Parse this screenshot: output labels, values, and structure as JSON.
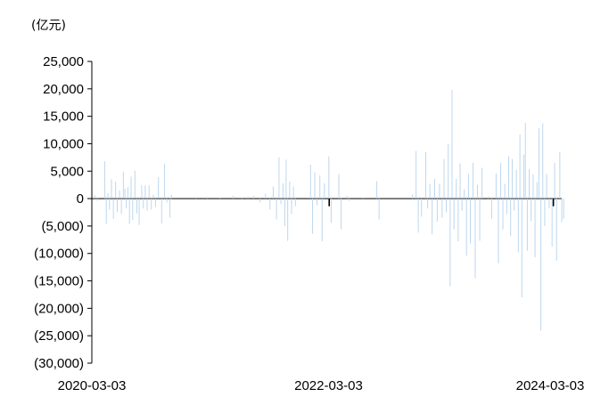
{
  "chart_data": {
    "type": "bar",
    "unit_label": "(亿元)",
    "ylim": [
      -30000,
      25000
    ],
    "yticks": [
      25000,
      20000,
      15000,
      10000,
      5000,
      0,
      -5000,
      -10000,
      -15000,
      -20000,
      -25000,
      -30000
    ],
    "ytick_labels": [
      "25,000",
      "20,000",
      "15,000",
      "10,000",
      "5,000",
      "0",
      "(5,000)",
      "(10,000)",
      "(15,000)",
      "(20,000)",
      "(25,000)",
      "(30,000)"
    ],
    "xlim": [
      "2020-03-03",
      "2024-03-03"
    ],
    "xtick_labels": [
      "2020-03-03",
      "2022-03-03",
      "2024-03-03"
    ],
    "grid": false,
    "series_colors": {
      "main": "#bdd7ee",
      "highlight": "#000000"
    },
    "series": [
      {
        "values": [
          [
            "2020-03-13",
            600
          ],
          [
            "2020-03-20",
            -400
          ],
          [
            "2020-04-12",
            6800
          ],
          [
            "2020-04-17",
            -4600
          ],
          [
            "2020-04-22",
            1000
          ],
          [
            "2020-04-27",
            -2000
          ],
          [
            "2020-05-03",
            3500
          ],
          [
            "2020-05-09",
            -3700
          ],
          [
            "2020-05-16",
            3100
          ],
          [
            "2020-05-21",
            -2500
          ],
          [
            "2020-05-28",
            1500
          ],
          [
            "2020-06-03",
            -2800
          ],
          [
            "2020-06-09",
            4900
          ],
          [
            "2020-06-14",
            1800
          ],
          [
            "2020-06-18",
            -1800
          ],
          [
            "2020-06-23",
            2100
          ],
          [
            "2020-06-28",
            -4600
          ],
          [
            "2020-07-03",
            4000
          ],
          [
            "2020-07-08",
            -3900
          ],
          [
            "2020-07-15",
            5100
          ],
          [
            "2020-07-21",
            -2700
          ],
          [
            "2020-07-28",
            -4800
          ],
          [
            "2020-08-05",
            2400
          ],
          [
            "2020-08-10",
            -1800
          ],
          [
            "2020-08-16",
            2400
          ],
          [
            "2020-08-22",
            -2200
          ],
          [
            "2020-08-28",
            2400
          ],
          [
            "2020-09-04",
            -2000
          ],
          [
            "2020-09-10",
            700
          ],
          [
            "2020-09-17",
            -1500
          ],
          [
            "2020-09-26",
            3900
          ],
          [
            "2020-10-06",
            -4500
          ],
          [
            "2020-10-15",
            6300
          ],
          [
            "2020-10-22",
            -700
          ],
          [
            "2020-11-01",
            -3500
          ],
          [
            "2020-11-06",
            700
          ],
          [
            "2021-01-20",
            300
          ],
          [
            "2021-02-25",
            300
          ],
          [
            "2021-04-05",
            200
          ],
          [
            "2021-05-16",
            500
          ],
          [
            "2021-06-12",
            -300
          ],
          [
            "2021-07-01",
            400
          ],
          [
            "2021-07-20",
            500
          ],
          [
            "2021-08-08",
            -700
          ],
          [
            "2021-08-25",
            900
          ],
          [
            "2021-09-08",
            -2000
          ],
          [
            "2021-09-18",
            2200
          ],
          [
            "2021-09-28",
            -3800
          ],
          [
            "2021-10-06",
            7500
          ],
          [
            "2021-10-12",
            -1000
          ],
          [
            "2021-10-18",
            2800
          ],
          [
            "2021-10-24",
            -5000
          ],
          [
            "2021-10-28",
            7100
          ],
          [
            "2021-11-02",
            -7700
          ],
          [
            "2021-11-08",
            3100
          ],
          [
            "2021-11-14",
            -2800
          ],
          [
            "2021-11-20",
            2200
          ],
          [
            "2021-11-26",
            -1400
          ],
          [
            "2022-01-12",
            6200
          ],
          [
            "2022-01-18",
            -6400
          ],
          [
            "2022-01-25",
            4800
          ],
          [
            "2022-02-01",
            -1200
          ],
          [
            "2022-02-10",
            4200
          ],
          [
            "2022-02-17",
            -7800
          ],
          [
            "2022-02-24",
            2800
          ],
          [
            "2022-03-10",
            7700
          ],
          [
            "2022-03-17",
            -4400
          ],
          [
            "2022-04-10",
            4500
          ],
          [
            "2022-04-17",
            -5600
          ],
          [
            "2022-05-05",
            500
          ],
          [
            "2022-05-12",
            -400
          ],
          [
            "2022-06-24",
            200
          ],
          [
            "2022-08-06",
            3200
          ],
          [
            "2022-08-13",
            -3800
          ],
          [
            "2022-11-25",
            800
          ],
          [
            "2022-12-06",
            8700
          ],
          [
            "2022-12-13",
            -6200
          ],
          [
            "2022-12-23",
            -3300
          ],
          [
            "2023-01-05",
            8500
          ],
          [
            "2023-01-11",
            -1800
          ],
          [
            "2023-01-18",
            2700
          ],
          [
            "2023-01-25",
            -6500
          ],
          [
            "2023-02-02",
            3600
          ],
          [
            "2023-02-10",
            -4200
          ],
          [
            "2023-02-17",
            2700
          ],
          [
            "2023-02-25",
            -3500
          ],
          [
            "2023-03-03",
            7200
          ],
          [
            "2023-03-10",
            -2500
          ],
          [
            "2023-03-16",
            9900
          ],
          [
            "2023-03-22",
            -16000
          ],
          [
            "2023-03-28",
            19800
          ],
          [
            "2023-04-03",
            -5600
          ],
          [
            "2023-04-10",
            3600
          ],
          [
            "2023-04-16",
            -7800
          ],
          [
            "2023-04-22",
            6400
          ],
          [
            "2023-04-28",
            -2200
          ],
          [
            "2023-05-05",
            1700
          ],
          [
            "2023-05-12",
            -10400
          ],
          [
            "2023-05-18",
            4500
          ],
          [
            "2023-05-24",
            -8200
          ],
          [
            "2023-06-01",
            6500
          ],
          [
            "2023-06-08",
            -14500
          ],
          [
            "2023-06-15",
            2500
          ],
          [
            "2023-06-22",
            -7700
          ],
          [
            "2023-06-29",
            5600
          ],
          [
            "2023-07-18",
            400
          ],
          [
            "2023-07-29",
            -3700
          ],
          [
            "2023-08-12",
            4600
          ],
          [
            "2023-08-19",
            -11800
          ],
          [
            "2023-08-26",
            6500
          ],
          [
            "2023-09-02",
            -5600
          ],
          [
            "2023-09-08",
            2700
          ],
          [
            "2023-09-14",
            -2800
          ],
          [
            "2023-09-20",
            7700
          ],
          [
            "2023-09-26",
            -6800
          ],
          [
            "2023-10-01",
            7200
          ],
          [
            "2023-10-07",
            -2200
          ],
          [
            "2023-10-14",
            5300
          ],
          [
            "2023-10-20",
            -9800
          ],
          [
            "2023-10-25",
            11700
          ],
          [
            "2023-10-31",
            -18000
          ],
          [
            "2023-11-06",
            8000
          ],
          [
            "2023-11-11",
            13800
          ],
          [
            "2023-11-17",
            -9500
          ],
          [
            "2023-11-23",
            5400
          ],
          [
            "2023-11-29",
            -4100
          ],
          [
            "2023-12-05",
            4400
          ],
          [
            "2023-12-11",
            -10700
          ],
          [
            "2023-12-17",
            3000
          ],
          [
            "2023-12-23",
            12800
          ],
          [
            "2023-12-29",
            -24100
          ],
          [
            "2024-01-04",
            13700
          ],
          [
            "2024-01-10",
            -5000
          ],
          [
            "2024-01-16",
            4500
          ],
          [
            "2024-01-24",
            -1800
          ],
          [
            "2024-02-02",
            -8800
          ],
          [
            "2024-02-10",
            6500
          ],
          [
            "2024-02-16",
            -11300
          ],
          [
            "2024-02-26",
            8500
          ],
          [
            "2024-03-03",
            -4300
          ],
          [
            "2024-03-09",
            -3700
          ]
        ]
      },
      {
        "values": [
          [
            "2022-03-11",
            -1400
          ],
          [
            "2024-02-06",
            -1400
          ]
        ]
      }
    ]
  }
}
